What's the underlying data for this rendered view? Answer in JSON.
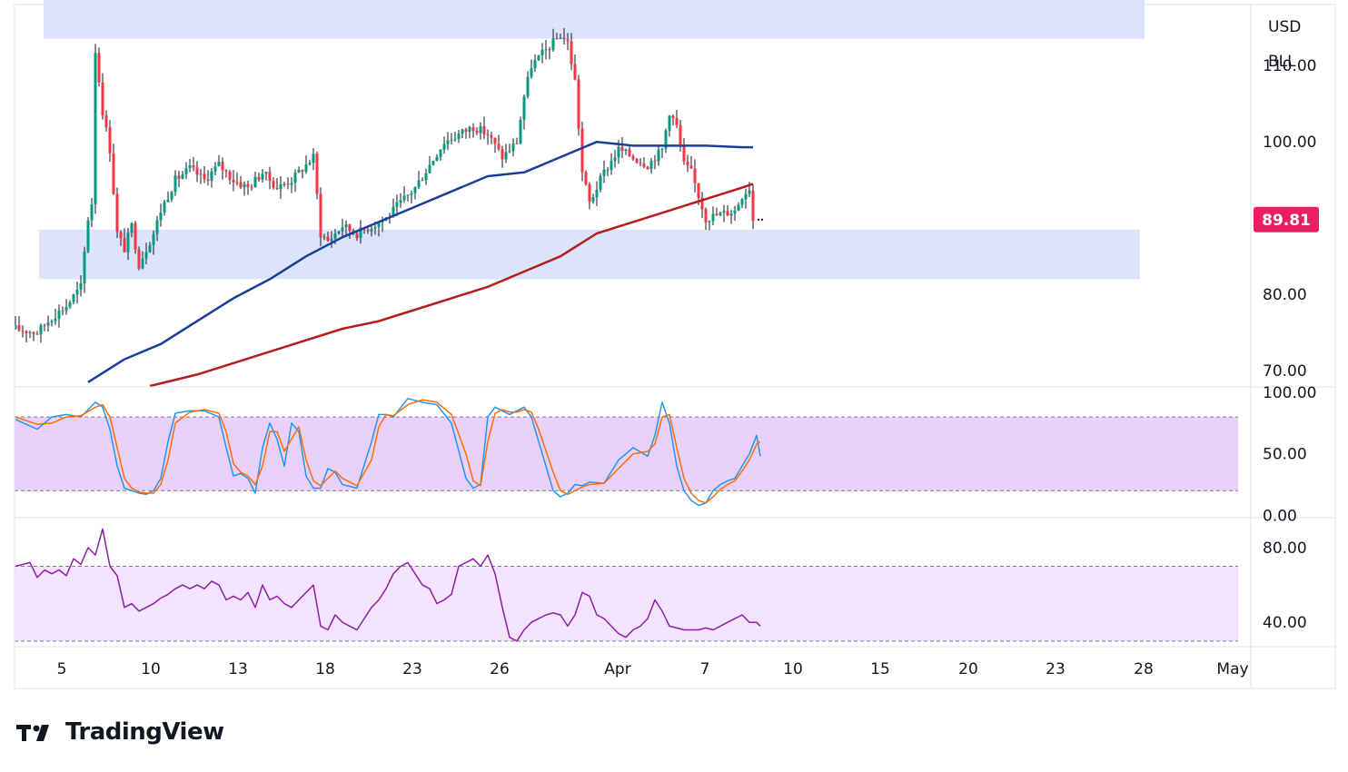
{
  "app": {
    "brand": "TradingView"
  },
  "colors": {
    "zone": "#dce4fb",
    "up": "#089981",
    "down": "#f23645",
    "wick": "#131722",
    "ma_blue": "#1a3f9a",
    "ma_red": "#b71c1c",
    "stoch_k": "#2196f3",
    "stoch_d": "#ff6d00",
    "stoch_band": "#ead1fb",
    "rsi_line": "#8e1fa8",
    "rsi_band": "#f3e3fc",
    "last_price": "#e91e63",
    "grid": "#e0e3eb",
    "text": "#131722"
  },
  "price_scale": {
    "currency": "USD",
    "unit": "BLL",
    "last_price": "89.81"
  },
  "chart_data": [
    {
      "type": "candlestick",
      "pane": "price",
      "ylim": [
        68,
        118
      ],
      "yticks": [
        "110.00",
        "100.00",
        "80.00",
        "70.00"
      ],
      "ytick_values": [
        110,
        100,
        80,
        70
      ],
      "xticks": [
        "5",
        "10",
        "13",
        "18",
        "23",
        "26",
        "Apr",
        "7",
        "10",
        "15",
        "20",
        "23",
        "28",
        "May"
      ],
      "xlabel": "",
      "ylabel": "",
      "price_path": [
        [
          0,
          75.5
        ],
        [
          6,
          75
        ],
        [
          10,
          77
        ],
        [
          14,
          78.5
        ],
        [
          18,
          81
        ],
        [
          20,
          90
        ],
        [
          21,
          92
        ],
        [
          22,
          112
        ],
        [
          24,
          104
        ],
        [
          26,
          99
        ],
        [
          28,
          88
        ],
        [
          30,
          86
        ],
        [
          32,
          89
        ],
        [
          34,
          84
        ],
        [
          36,
          86
        ],
        [
          38,
          88
        ],
        [
          40,
          91
        ],
        [
          42,
          93
        ],
        [
          44,
          95
        ],
        [
          48,
          96.5
        ],
        [
          52,
          95
        ],
        [
          56,
          97
        ],
        [
          60,
          95
        ],
        [
          64,
          94
        ],
        [
          68,
          96
        ],
        [
          72,
          94
        ],
        [
          76,
          95
        ],
        [
          80,
          97
        ],
        [
          82,
          98
        ],
        [
          84,
          88
        ],
        [
          86,
          87
        ],
        [
          90,
          89
        ],
        [
          94,
          88
        ],
        [
          98,
          89
        ],
        [
          102,
          90
        ],
        [
          106,
          92
        ],
        [
          110,
          94
        ],
        [
          114,
          97
        ],
        [
          118,
          100
        ],
        [
          122,
          101
        ],
        [
          126,
          102
        ],
        [
          130,
          101
        ],
        [
          134,
          98
        ],
        [
          138,
          100
        ],
        [
          140,
          106
        ],
        [
          142,
          110
        ],
        [
          144,
          111
        ],
        [
          148,
          113
        ],
        [
          150,
          114
        ],
        [
          152,
          113
        ],
        [
          154,
          108
        ],
        [
          156,
          96
        ],
        [
          158,
          92
        ],
        [
          162,
          96
        ],
        [
          166,
          99
        ],
        [
          170,
          98
        ],
        [
          174,
          97
        ],
        [
          178,
          99
        ],
        [
          180,
          104
        ],
        [
          182,
          102
        ],
        [
          184,
          97
        ],
        [
          186,
          96
        ],
        [
          188,
          93
        ],
        [
          190,
          90
        ],
        [
          194,
          90.5
        ],
        [
          198,
          91
        ],
        [
          200,
          93
        ],
        [
          202,
          94
        ],
        [
          203,
          89.81
        ]
      ],
      "support_zone": [
        82,
        88.5
      ],
      "resistance_zone": [
        113.5,
        119.5
      ],
      "series": [
        {
          "name": "",
          "kind": "moving-average",
          "color": "ma_blue",
          "x": [
            20,
            30,
            40,
            50,
            60,
            70,
            80,
            90,
            100,
            110,
            120,
            130,
            140,
            150,
            160,
            170,
            180,
            190,
            200,
            203
          ],
          "values": [
            68.5,
            71.5,
            73.5,
            76.5,
            79.5,
            82,
            85,
            87.5,
            89.5,
            91.5,
            93.5,
            95.5,
            96,
            98,
            100,
            99.5,
            99.5,
            99.5,
            99.3,
            99.3
          ]
        },
        {
          "name": "",
          "kind": "moving-average",
          "color": "ma_red",
          "x": [
            37,
            50,
            60,
            70,
            80,
            90,
            100,
            110,
            120,
            130,
            140,
            150,
            160,
            170,
            180,
            190,
            200,
            203
          ],
          "values": [
            68,
            69.5,
            71,
            72.5,
            74,
            75.5,
            76.5,
            78,
            79.5,
            81,
            83,
            85,
            88,
            89.5,
            91,
            92.5,
            94,
            94.5
          ]
        }
      ]
    },
    {
      "type": "line",
      "pane": "stochastic",
      "ylim": [
        -2,
        103
      ],
      "yticks": [
        "100.00",
        "50.00",
        "0.00"
      ],
      "ytick_values": [
        100,
        50,
        0
      ],
      "band": [
        20,
        80
      ],
      "series": [
        {
          "name": "",
          "color": "stoch_k",
          "x": [
            0,
            6,
            10,
            14,
            18,
            22,
            24,
            26,
            28,
            30,
            32,
            34,
            36,
            38,
            40,
            42,
            44,
            48,
            52,
            56,
            58,
            60,
            62,
            64,
            66,
            68,
            70,
            72,
            74,
            76,
            78,
            80,
            82,
            84,
            86,
            88,
            90,
            94,
            98,
            100,
            102,
            104,
            108,
            112,
            116,
            120,
            124,
            126,
            128,
            130,
            132,
            134,
            136,
            138,
            140,
            142,
            144,
            148,
            150,
            152,
            154,
            156,
            158,
            162,
            166,
            170,
            174,
            176,
            178,
            180,
            182,
            184,
            186,
            188,
            190,
            192,
            194,
            196,
            198,
            200,
            202,
            204,
            205
          ],
          "values": [
            78,
            70,
            80,
            82,
            80,
            92,
            88,
            70,
            40,
            22,
            20,
            18,
            17,
            20,
            30,
            60,
            83,
            85,
            85,
            80,
            55,
            32,
            34,
            30,
            18,
            55,
            75,
            62,
            40,
            75,
            68,
            32,
            22,
            22,
            38,
            35,
            25,
            22,
            60,
            82,
            82,
            80,
            95,
            92,
            90,
            75,
            30,
            22,
            25,
            80,
            88,
            85,
            82,
            85,
            88,
            80,
            60,
            20,
            15,
            18,
            25,
            24,
            27,
            26,
            45,
            55,
            48,
            65,
            92,
            75,
            40,
            20,
            12,
            8,
            10,
            20,
            25,
            28,
            30,
            40,
            50,
            65,
            48
          ]
        },
        {
          "name": "",
          "color": "stoch_d",
          "x": [
            0,
            6,
            10,
            14,
            18,
            22,
            24,
            26,
            28,
            30,
            32,
            34,
            36,
            38,
            40,
            42,
            44,
            48,
            52,
            56,
            58,
            60,
            62,
            64,
            66,
            68,
            70,
            72,
            74,
            76,
            78,
            80,
            82,
            84,
            86,
            88,
            90,
            94,
            98,
            100,
            102,
            104,
            108,
            112,
            116,
            120,
            124,
            126,
            128,
            130,
            132,
            134,
            136,
            138,
            140,
            142,
            144,
            148,
            150,
            152,
            154,
            156,
            158,
            162,
            166,
            170,
            174,
            176,
            178,
            180,
            182,
            184,
            186,
            188,
            190,
            192,
            194,
            196,
            198,
            200,
            202,
            204,
            205
          ],
          "values": [
            80,
            74,
            75,
            80,
            81,
            88,
            90,
            80,
            55,
            30,
            22,
            19,
            18,
            18,
            25,
            45,
            75,
            84,
            86,
            83,
            68,
            42,
            35,
            32,
            25,
            40,
            68,
            68,
            52,
            62,
            72,
            45,
            28,
            24,
            30,
            36,
            30,
            24,
            45,
            72,
            82,
            81,
            90,
            94,
            92,
            82,
            50,
            28,
            24,
            60,
            83,
            86,
            84,
            84,
            86,
            84,
            70,
            35,
            20,
            17,
            20,
            23,
            25,
            26,
            38,
            50,
            52,
            58,
            80,
            82,
            55,
            30,
            18,
            12,
            10,
            15,
            21,
            25,
            28,
            36,
            45,
            58,
            60
          ]
        }
      ]
    },
    {
      "type": "line",
      "pane": "rsi",
      "ylim": [
        27,
        95
      ],
      "yticks": [
        "80.00",
        "40.00"
      ],
      "ytick_values": [
        80,
        40
      ],
      "band": [
        30,
        70
      ],
      "series": [
        {
          "name": "",
          "color": "rsi_line",
          "x": [
            0,
            4,
            6,
            8,
            10,
            12,
            14,
            16,
            18,
            20,
            22,
            24,
            26,
            28,
            30,
            32,
            34,
            36,
            38,
            40,
            42,
            44,
            46,
            48,
            50,
            52,
            54,
            56,
            58,
            60,
            62,
            64,
            66,
            68,
            70,
            72,
            74,
            76,
            78,
            80,
            82,
            84,
            86,
            88,
            90,
            92,
            94,
            96,
            98,
            100,
            102,
            104,
            106,
            108,
            110,
            112,
            114,
            116,
            118,
            120,
            122,
            124,
            126,
            128,
            130,
            132,
            134,
            136,
            138,
            140,
            142,
            144,
            146,
            148,
            150,
            152,
            154,
            156,
            158,
            160,
            162,
            164,
            166,
            168,
            170,
            172,
            174,
            176,
            178,
            180,
            182,
            184,
            186,
            188,
            190,
            192,
            194,
            196,
            198,
            200,
            202,
            204,
            205
          ],
          "values": [
            70,
            72,
            64,
            68,
            66,
            68,
            65,
            74,
            71,
            80,
            76,
            90,
            70,
            65,
            48,
            50,
            46,
            48,
            50,
            53,
            55,
            58,
            60,
            58,
            60,
            58,
            62,
            60,
            52,
            54,
            52,
            56,
            48,
            60,
            52,
            54,
            50,
            48,
            52,
            56,
            60,
            38,
            36,
            44,
            40,
            38,
            36,
            42,
            48,
            52,
            58,
            66,
            70,
            72,
            66,
            60,
            58,
            50,
            52,
            55,
            70,
            72,
            74,
            70,
            76,
            66,
            48,
            32,
            30,
            36,
            40,
            42,
            44,
            45,
            44,
            38,
            44,
            56,
            54,
            44,
            42,
            38,
            34,
            32,
            36,
            38,
            42,
            52,
            46,
            38,
            37,
            36,
            36,
            36,
            37,
            36,
            38,
            40,
            42,
            44,
            40,
            40,
            38
          ]
        }
      ]
    }
  ]
}
